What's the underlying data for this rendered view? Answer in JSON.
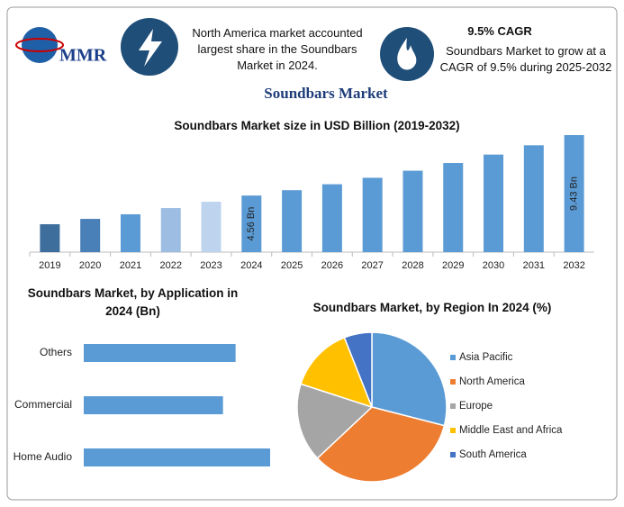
{
  "header": {
    "logo_text": "MMR",
    "info": "North America market accounted largest share in the Soundbars Market in 2024.",
    "cagr_title": "9.5% CAGR",
    "cagr_text": "Soundbars Market to grow at a CAGR of 9.5% during 2025-2032",
    "title": "Soundbars Market"
  },
  "chart_data": [
    {
      "type": "bar",
      "title": "Soundbars Market size in USD Billion (2019-2032)",
      "categories": [
        "2019",
        "2020",
        "2021",
        "2022",
        "2023",
        "2024",
        "2025",
        "2026",
        "2027",
        "2028",
        "2029",
        "2030",
        "2031",
        "2032"
      ],
      "values": [
        2.25,
        2.68,
        3.05,
        3.55,
        4.06,
        4.56,
        4.99,
        5.47,
        5.99,
        6.56,
        7.18,
        7.86,
        8.61,
        9.43
      ],
      "value_labels": [
        null,
        null,
        null,
        null,
        null,
        "4.56 Bn",
        null,
        null,
        null,
        null,
        null,
        null,
        null,
        "9.43 Bn"
      ],
      "colors": [
        "#3d6e9c",
        "#4a80b8",
        "#5b9bd5",
        "#9dbde3",
        "#bed4ee",
        "#5b9bd5",
        "#5b9bd5",
        "#5b9bd5",
        "#5b9bd5",
        "#5b9bd5",
        "#5b9bd5",
        "#5b9bd5",
        "#5b9bd5",
        "#5b9bd5"
      ]
    },
    {
      "type": "hbar",
      "title": "Soundbars Market, by Application in 2024 (Bn)",
      "categories": [
        "Others",
        "Commercial",
        "Home Audio"
      ],
      "values": [
        1.45,
        1.33,
        1.78
      ],
      "color": "#5b9bd5"
    },
    {
      "type": "pie",
      "title": "Soundbars Market, by Region In 2024 (%)",
      "categories": [
        "Asia Pacific",
        "North America",
        "Europe",
        "Middle East and Africa",
        "South America"
      ],
      "values": [
        29,
        34,
        17,
        14,
        6
      ],
      "colors": [
        "#5b9bd5",
        "#ed7d31",
        "#a5a5a5",
        "#ffc000",
        "#4472c4"
      ],
      "legend": "right"
    }
  ]
}
